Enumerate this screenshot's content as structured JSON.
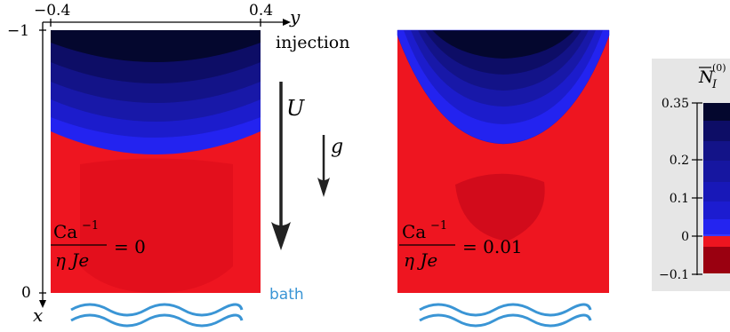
{
  "left_axes": {
    "y_axis_label": "y",
    "x_axis_label": "x",
    "y_tick_left": "−0.4",
    "y_tick_right": "0.4",
    "x_tick_top": "−1",
    "x_tick_bottom": "0"
  },
  "annotations": {
    "injection": "injection",
    "bath": "bath",
    "velocity_label": "U",
    "gravity_label": "g"
  },
  "panels": [
    {
      "param_numerator": "Ca",
      "param_exponent": "−1",
      "param_denominator": "η Je",
      "param_value": "= 0"
    },
    {
      "param_numerator": "Ca",
      "param_exponent": "−1",
      "param_denominator": "η Je",
      "param_value": "= 0.01"
    }
  ],
  "colorbar": {
    "title_main": "N",
    "title_sub": "I",
    "title_sup": "(0)",
    "ticks": [
      "0.35",
      "0.2",
      "0.1",
      "0",
      "−0.1"
    ]
  },
  "colors": {
    "deep_navy": "#04072e",
    "blue": "#2222ee",
    "red": "#ee1520",
    "dark_red": "#9a0010",
    "bath_blue": "#3a95d5",
    "colorbar_bg": "#e6e6e6"
  }
}
